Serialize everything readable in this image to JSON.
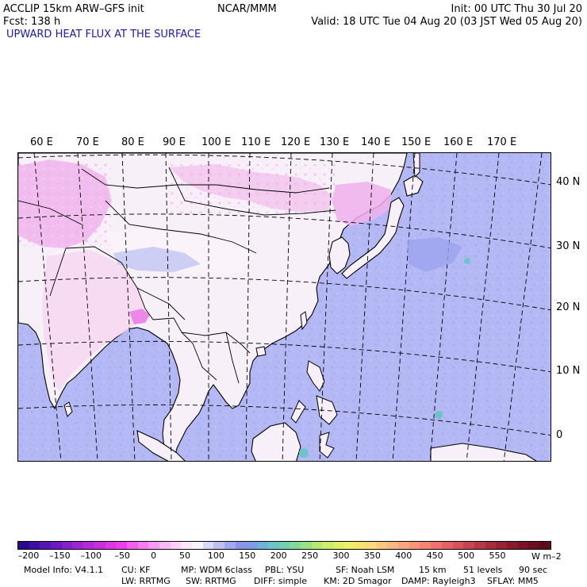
{
  "header": {
    "model_line": "ACCLIP 15km ARW–GFS init",
    "forecast_line": "Fcst:  138 h",
    "center": "NCAR/MMM",
    "init": "Init: 00 UTC Thu 30 Jul 20",
    "valid": "Valid: 18 UTC Tue 04 Aug 20 (03 JST Wed 05 Aug 20)",
    "field_title": "UPWARD HEAT FLUX AT THE SURFACE"
  },
  "map": {
    "longitude_labels": [
      "60 E",
      "70 E",
      "80 E",
      "90 E",
      "100 E",
      "110 E",
      "120 E",
      "130 E",
      "140 E",
      "150 E",
      "160 E",
      "170 E"
    ],
    "latitude_labels": [
      "40 N",
      "30 N",
      "20 N",
      "10 N",
      "0"
    ],
    "colors": {
      "ocean_fill": "#b4b8f4",
      "land_fill": "#f7f0f8",
      "high_land": "#f2c8ee",
      "strong_neg": "#ee88e8",
      "coast": "#000000",
      "grid": "#000000"
    }
  },
  "colorbar": {
    "colors": [
      "#2a0a8c",
      "#3c0ea4",
      "#5414b8",
      "#6c18c4",
      "#8420cc",
      "#9c26d2",
      "#b42ad8",
      "#c82ee0",
      "#dc34e6",
      "#ee3cec",
      "#f45ef0",
      "#f67cf2",
      "#f89af4",
      "#fab6f6",
      "#fcd0f8",
      "#fde6fa",
      "#f6f4fb",
      "#dadaf8",
      "#bec0f4",
      "#a2a8f0",
      "#8a94ec",
      "#7c9ce6",
      "#6fb0dc",
      "#6cc4c8",
      "#70d2b0",
      "#80dc98",
      "#98e482",
      "#b4ea72",
      "#ccee6a",
      "#e0f066",
      "#eeee68",
      "#f6e470",
      "#fad87c",
      "#fcc880",
      "#fcb880",
      "#fca680",
      "#f9967a",
      "#f48474",
      "#ee726a",
      "#e46262",
      "#d8525a",
      "#ca4450",
      "#ba3646",
      "#a82a3c",
      "#982232",
      "#881a2a",
      "#7a1424",
      "#6c1020",
      "#5e0c1c"
    ],
    "ticks": [
      "–200",
      "–150",
      "–100",
      "–50",
      "0",
      "50",
      "100",
      "150",
      "200",
      "250",
      "300",
      "350",
      "400",
      "450",
      "500",
      "550"
    ],
    "units": "W m–2"
  },
  "footer": {
    "line1": [
      "Model Info: V4.1.1",
      "CU: KF",
      "MP: WDM 6class",
      "PBL: YSU",
      "SF: Noah LSM",
      "15 km",
      "51 levels",
      "90 sec"
    ],
    "line2": [
      "LW: RRTMG",
      "SW: RRTMG",
      "DIFF: simple",
      "KM: 2D Smagor",
      "DAMP: Rayleigh3",
      "SFLAY: MM5"
    ]
  }
}
